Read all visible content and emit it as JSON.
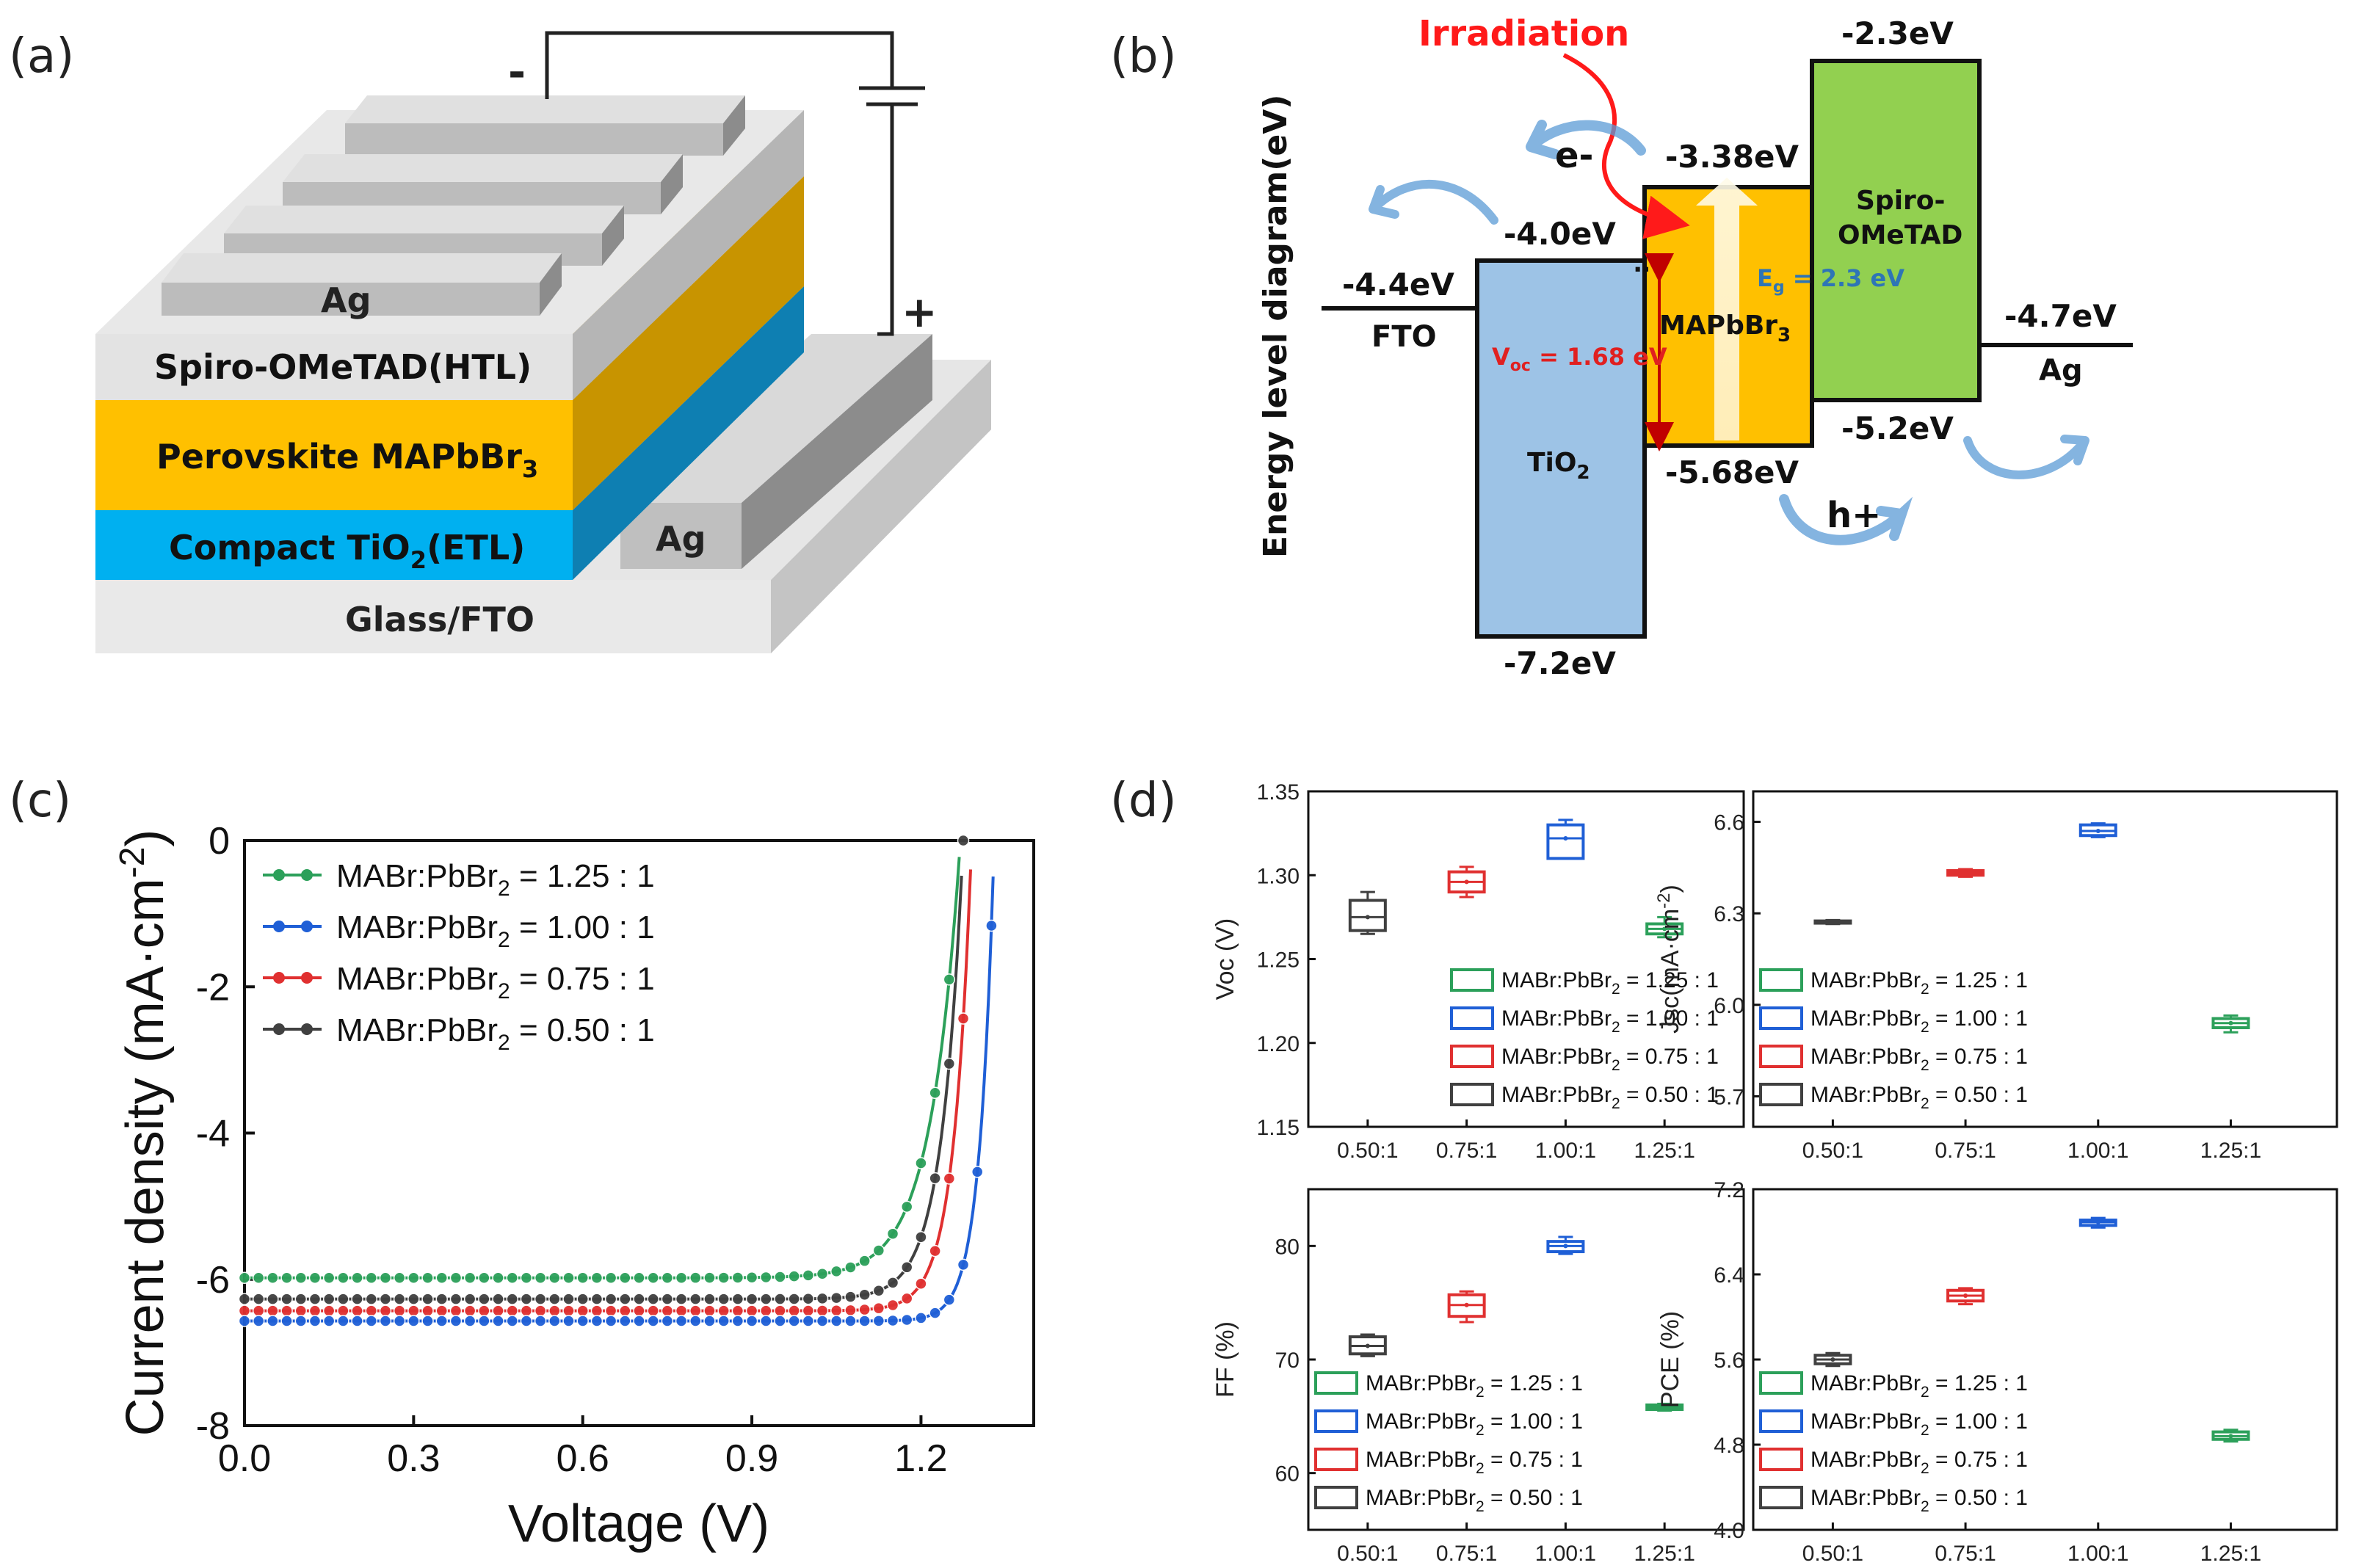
{
  "panel_labels": {
    "a": "(a)",
    "b": "(b)",
    "c": "(c)",
    "d": "(d)"
  },
  "device": {
    "layers": [
      "Glass/FTO",
      "Compact TiO",
      "2",
      "(ETL)",
      "Perovskite  MAPbBr",
      "3",
      "Spiro-OMeTAD(HTL)"
    ],
    "electrode_top": "Ag",
    "electrode_side": "Ag",
    "minus": "-",
    "plus": "+",
    "colors": {
      "glass": "#d9d9d9",
      "etl": "#00b0f0",
      "perovskite": "#ffc000",
      "htl": "#d9d9d9",
      "ag": "#bfbfbf"
    }
  },
  "energy": {
    "ylabel": "Energy level diagram(eV)",
    "irradiation": "Irradiation",
    "fto": {
      "name": "FTO",
      "level": "-4.4eV"
    },
    "tio2": {
      "name": "TiO",
      "sub": "2",
      "cb": "-4.0eV",
      "vb": "-7.2eV",
      "color": "#9dc3e6"
    },
    "mapbbr3": {
      "name": "MAPbBr",
      "sub": "3",
      "cb": "-3.38eV",
      "vb": "-5.68eV",
      "color": "#ffc000"
    },
    "spiro": {
      "name1": "Spiro-",
      "name2": "OMeTAD",
      "lumo": "-2.3eV",
      "homo": "-5.2eV",
      "color": "#92d050"
    },
    "ag": {
      "name": "Ag",
      "level": "-4.7eV"
    },
    "electron": "e-",
    "hole": "h+",
    "voc_label": "V",
    "voc_sub": "oc",
    "voc_value": " = 1.68 eV",
    "eg_label": "E",
    "eg_sub": "g",
    "eg_value": " = 2.3 eV"
  },
  "chart_data": [
    {
      "type": "line",
      "title": "",
      "xlabel": "Voltage (V)",
      "ylabel": "Current density (mA·cm",
      "ylabel_sup": "-2",
      "ylabel_end": ")",
      "xlim": [
        0.0,
        1.4
      ],
      "ylim": [
        -8,
        0
      ],
      "xticks": [
        "0.0",
        "0.3",
        "0.6",
        "0.9",
        "1.2"
      ],
      "yticks": [
        "0",
        "-2",
        "-4",
        "-6",
        "-8"
      ],
      "series": [
        {
          "name": "MABr:PbBr",
          "sub": "2",
          "ratio": " = 1.25 : 1",
          "color": "#2ca05a",
          "jsc": -5.98,
          "voc": 1.27,
          "ff": 65.8
        },
        {
          "name": "MABr:PbBr",
          "sub": "2",
          "ratio": " = 1.00 : 1",
          "color": "#1f5fd6",
          "jsc": -6.57,
          "voc": 1.33,
          "ff": 80.0
        },
        {
          "name": "MABr:PbBr",
          "sub": "2",
          "ratio": " = 0.75 : 1",
          "color": "#e03030",
          "jsc": -6.43,
          "voc": 1.29,
          "ff": 74.8
        },
        {
          "name": "MABr:PbBr",
          "sub": "2",
          "ratio": " = 0.50 : 1",
          "color": "#404040",
          "jsc": -6.27,
          "voc": 1.275,
          "ff": 71.2
        }
      ]
    },
    {
      "type": "box",
      "ylabel": "Voc (V)",
      "categories": [
        "0.50:1",
        "0.75:1",
        "1.00:1",
        "1.25:1"
      ],
      "ylim": [
        1.15,
        1.35
      ],
      "yticks": [
        "1.35",
        "1.30",
        "1.25",
        "1.20",
        "1.15"
      ],
      "legend_position": "bottom-right",
      "boxes": [
        {
          "min": 1.265,
          "q1": 1.267,
          "median": 1.275,
          "q3": 1.285,
          "max": 1.29,
          "color": "#404040"
        },
        {
          "min": 1.287,
          "q1": 1.29,
          "median": 1.296,
          "q3": 1.302,
          "max": 1.305,
          "color": "#e03030"
        },
        {
          "min": 1.31,
          "q1": 1.31,
          "median": 1.322,
          "q3": 1.33,
          "max": 1.333,
          "color": "#1f5fd6"
        },
        {
          "min": 1.263,
          "q1": 1.265,
          "median": 1.268,
          "q3": 1.271,
          "max": 1.275,
          "color": "#2ca05a"
        }
      ]
    },
    {
      "type": "box",
      "ylabel": "Jsc(mA·cm",
      "ylabel_sup": "-2",
      "ylabel_end": ")",
      "categories": [
        "0.50:1",
        "0.75:1",
        "1.00:1",
        "1.25:1"
      ],
      "ylim": [
        5.6,
        6.7
      ],
      "yticks": [
        "6.6",
        "6.3",
        "6.0",
        "5.7"
      ],
      "legend_position": "bottom-left",
      "boxes": [
        {
          "min": 6.265,
          "q1": 6.268,
          "median": 6.27,
          "q3": 6.275,
          "max": 6.278,
          "color": "#404040"
        },
        {
          "min": 6.42,
          "q1": 6.425,
          "median": 6.432,
          "q3": 6.44,
          "max": 6.445,
          "color": "#e03030"
        },
        {
          "min": 6.55,
          "q1": 6.555,
          "median": 6.57,
          "q3": 6.59,
          "max": 6.595,
          "color": "#1f5fd6"
        },
        {
          "min": 5.91,
          "q1": 5.925,
          "median": 5.94,
          "q3": 5.955,
          "max": 5.965,
          "color": "#2ca05a"
        }
      ]
    },
    {
      "type": "box",
      "ylabel": "FF (%)",
      "categories": [
        "0.50:1",
        "0.75:1",
        "1.00:1",
        "1.25:1"
      ],
      "ylim": [
        55,
        85
      ],
      "yticks": [
        "80",
        "70",
        "60"
      ],
      "legend_position": "bottom-left",
      "boxes": [
        {
          "min": 70.3,
          "q1": 70.5,
          "median": 71.2,
          "q3": 72.0,
          "max": 72.2,
          "color": "#404040"
        },
        {
          "min": 73.3,
          "q1": 73.8,
          "median": 74.8,
          "q3": 75.7,
          "max": 76.0,
          "color": "#e03030"
        },
        {
          "min": 79.3,
          "q1": 79.5,
          "median": 80.0,
          "q3": 80.4,
          "max": 80.8,
          "color": "#1f5fd6"
        },
        {
          "min": 65.5,
          "q1": 65.6,
          "median": 65.8,
          "q3": 66.0,
          "max": 66.1,
          "color": "#2ca05a"
        }
      ]
    },
    {
      "type": "box",
      "ylabel": "PCE (%)",
      "categories": [
        "0.50:1",
        "0.75:1",
        "1.00:1",
        "1.25:1"
      ],
      "ylim": [
        4.0,
        7.2
      ],
      "yticks": [
        "7.2",
        "6.4",
        "5.6",
        "4.8",
        "4.0"
      ],
      "legend_position": "bottom-left",
      "boxes": [
        {
          "min": 5.54,
          "q1": 5.56,
          "median": 5.6,
          "q3": 5.64,
          "max": 5.66,
          "color": "#404040"
        },
        {
          "min": 6.12,
          "q1": 6.15,
          "median": 6.2,
          "q3": 6.25,
          "max": 6.27,
          "color": "#e03030"
        },
        {
          "min": 6.84,
          "q1": 6.86,
          "median": 6.89,
          "q3": 6.91,
          "max": 6.93,
          "color": "#1f5fd6"
        },
        {
          "min": 4.83,
          "q1": 4.85,
          "median": 4.88,
          "q3": 4.92,
          "max": 4.94,
          "color": "#2ca05a"
        }
      ]
    }
  ]
}
